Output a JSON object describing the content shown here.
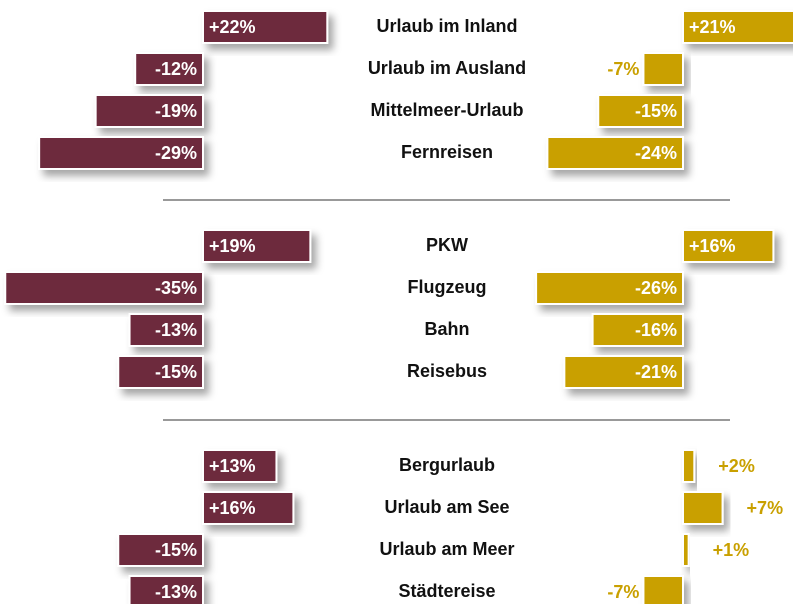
{
  "chart_data": {
    "type": "diverging-bar",
    "groups": [
      [
        "Urlaub im Inland",
        "Urlaub im Ausland",
        "Mittelmeer-Urlaub",
        "Fernreisen"
      ],
      [
        "PKW",
        "Flugzeug",
        "Bahn",
        "Reisebus"
      ],
      [
        "Bergurlaub",
        "Urlaub am See",
        "Urlaub am Meer",
        "Städtereise"
      ]
    ],
    "series": [
      {
        "color": "#6d2a3e",
        "values": [
          [
            22,
            -12,
            -19,
            -29
          ],
          [
            19,
            -35,
            -13,
            -15
          ],
          [
            13,
            16,
            -15,
            -13
          ]
        ],
        "value_labels": [
          [
            "+22%",
            "-12%",
            "-19%",
            "-29%"
          ],
          [
            "+19%",
            "-35%",
            "-13%",
            "-15%"
          ],
          [
            "+13%",
            "+16%",
            "-15%",
            "-13%"
          ]
        ]
      },
      {
        "color": "#c9a000",
        "values": [
          [
            21,
            -7,
            -15,
            -24
          ],
          [
            16,
            -26,
            -16,
            -21
          ],
          [
            2,
            7,
            1,
            -7
          ]
        ],
        "value_labels": [
          [
            "+21%",
            "-7%",
            "-15%",
            "-24%"
          ],
          [
            "+16%",
            "-26%",
            "-16%",
            "-21%"
          ],
          [
            "+2%",
            "+7%",
            "+1%",
            "-7%"
          ]
        ]
      }
    ]
  }
}
